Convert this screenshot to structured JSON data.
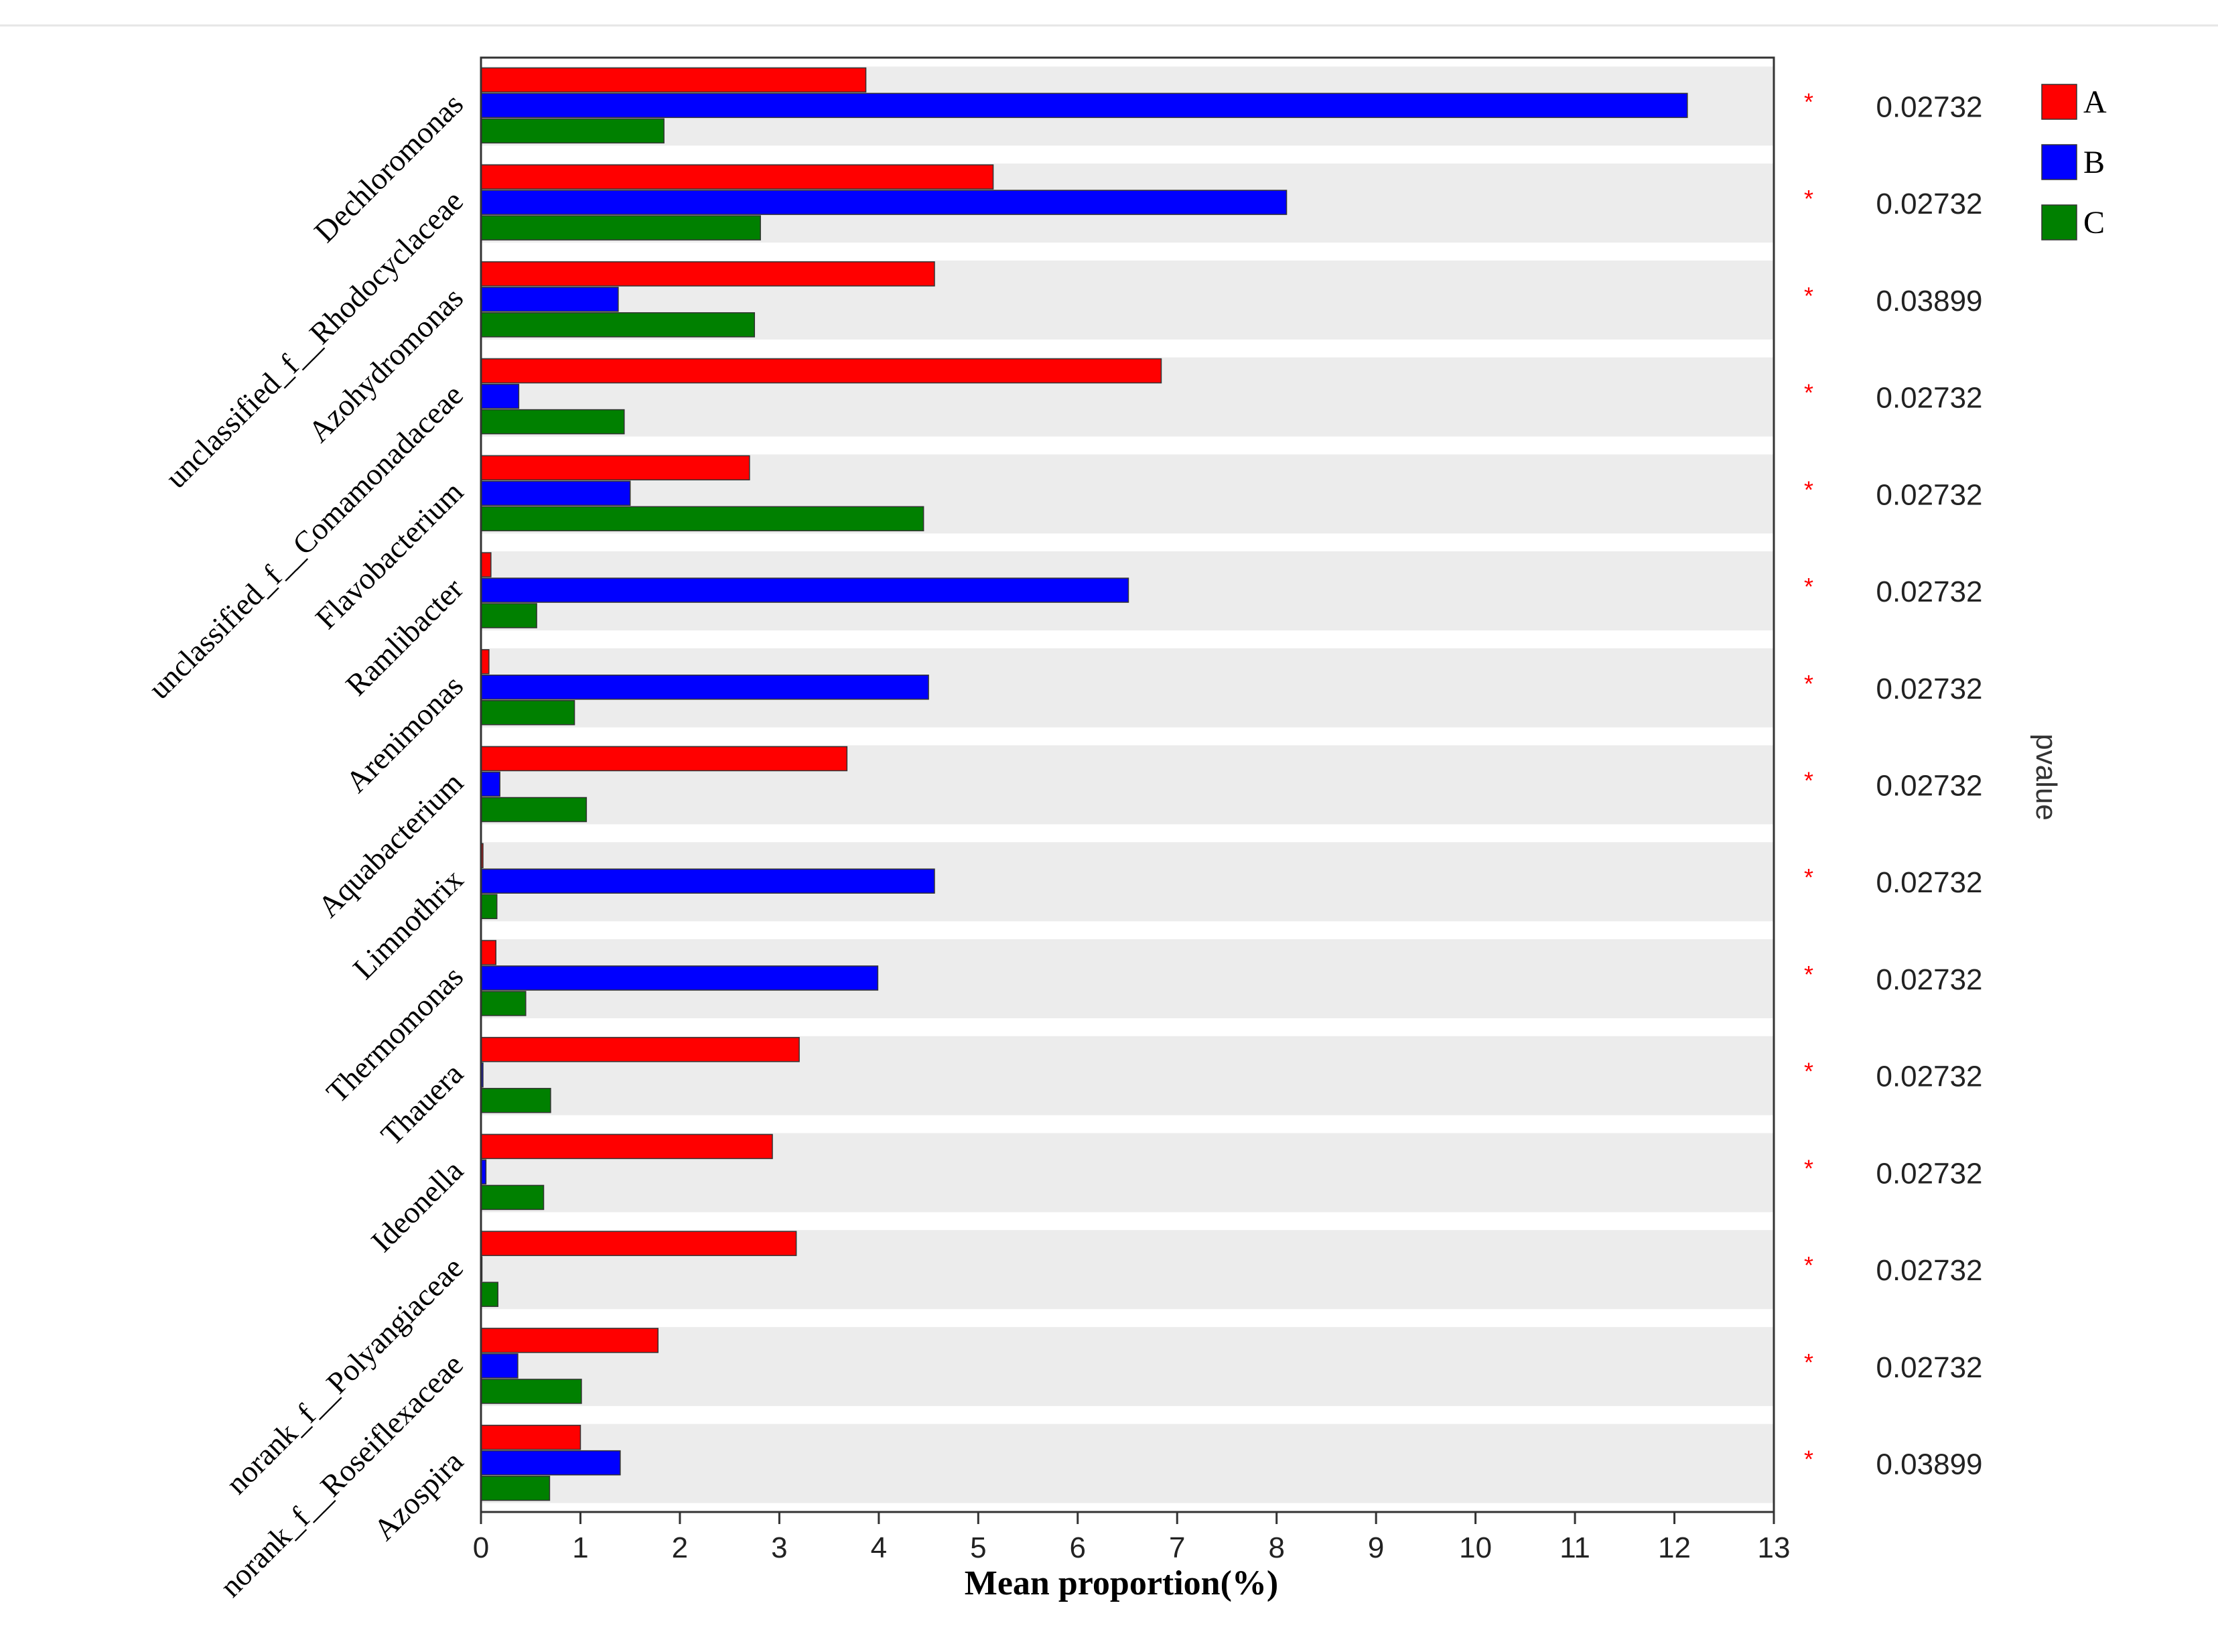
{
  "chart_data": {
    "type": "bar",
    "orientation": "horizontal",
    "xlabel": "Mean proportion(%)",
    "pvalue_label": "pvalue",
    "xlim": [
      0,
      13
    ],
    "xticks": [
      0,
      1,
      2,
      3,
      4,
      5,
      6,
      7,
      8,
      9,
      10,
      11,
      12,
      13
    ],
    "categories": [
      "Dechloromonas",
      "unclassified_f__Rhodocyclaceae",
      "Azohydromonas",
      "unclassified_f__Comamonadaceae",
      "Flavobacterium",
      "Ramlibacter",
      "Arenimonas",
      "Aquabacterium",
      "Limnothrix",
      "Thermomonas",
      "Thauera",
      "Ideonella",
      "norank_f__Polyangiaceae",
      "norank_f__Roseiflexaceae",
      "Azospira"
    ],
    "series": [
      {
        "name": "A",
        "color": "#ff0000",
        "values": [
          3.87,
          5.15,
          4.56,
          6.84,
          2.7,
          0.1,
          0.08,
          3.68,
          0.02,
          0.15,
          3.2,
          2.93,
          3.17,
          1.78,
          1.0
        ]
      },
      {
        "name": "B",
        "color": "#0000ff",
        "values": [
          12.13,
          8.1,
          1.38,
          0.38,
          1.5,
          6.51,
          4.5,
          0.19,
          4.56,
          3.99,
          0.02,
          0.05,
          0.01,
          0.37,
          1.4
        ]
      },
      {
        "name": "C",
        "color": "#008000",
        "values": [
          1.84,
          2.81,
          2.75,
          1.44,
          4.45,
          0.56,
          0.94,
          1.06,
          0.16,
          0.45,
          0.7,
          0.63,
          0.17,
          1.01,
          0.69
        ]
      }
    ],
    "significance": [
      "*",
      "*",
      "*",
      "*",
      "*",
      "*",
      "*",
      "*",
      "*",
      "*",
      "*",
      "*",
      "*",
      "*",
      "*"
    ],
    "pvalues": [
      "0.02732",
      "0.02732",
      "0.03899",
      "0.02732",
      "0.02732",
      "0.02732",
      "0.02732",
      "0.02732",
      "0.02732",
      "0.02732",
      "0.02732",
      "0.02732",
      "0.02732",
      "0.02732",
      "0.03899"
    ],
    "legend": {
      "position": "top-right",
      "entries": [
        "A",
        "B",
        "C"
      ]
    }
  },
  "colors": {
    "band": "#ececec",
    "axis": "#333333",
    "star": "#ff0000",
    "text": "#000000"
  }
}
